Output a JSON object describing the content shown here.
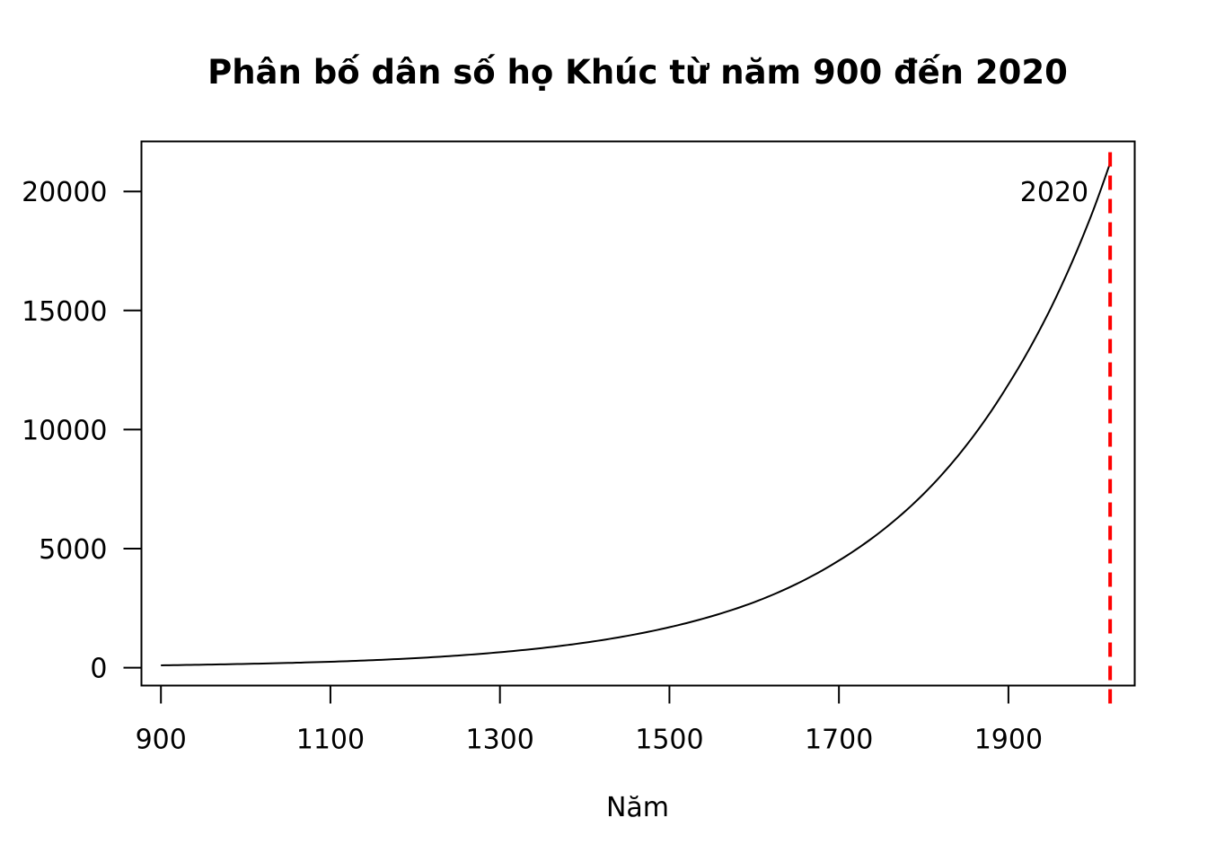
{
  "chart_data": {
    "type": "line",
    "title": "Phân bố dân số họ Khúc từ năm 900 đến 2020",
    "xlabel": "Năm",
    "ylabel": "",
    "xlim": [
      877,
      2049
    ],
    "ylim": [
      -750,
      22100
    ],
    "x_ticks": [
      900,
      1100,
      1300,
      1500,
      1700,
      1900
    ],
    "y_ticks": [
      0,
      5000,
      10000,
      15000,
      20000
    ],
    "grid": false,
    "legend": "none",
    "series": [
      {
        "color": "#000000",
        "x": [
          900,
          1000,
          1100,
          1200,
          1300,
          1400,
          1500,
          1600,
          1700,
          1800,
          1900,
          1950,
          2000,
          2020
        ],
        "y": [
          100,
          160,
          250,
          400,
          650,
          1050,
          1700,
          2750,
          4500,
          7300,
          11900,
          15100,
          19200,
          21200
        ]
      }
    ],
    "reference_line": {
      "x": 2020,
      "color": "#ff0000",
      "style": "dashed"
    },
    "annotation": {
      "text": "2020",
      "x": 2020,
      "y": 20000
    }
  }
}
